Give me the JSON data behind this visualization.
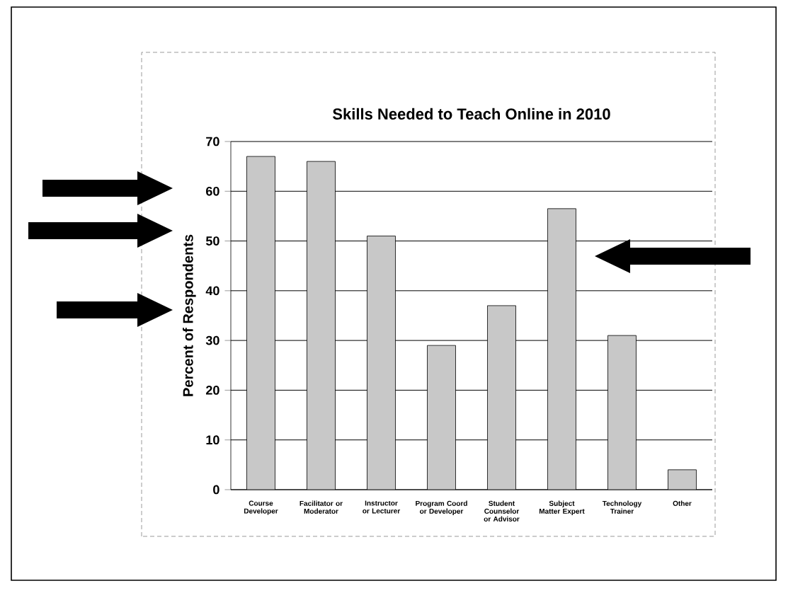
{
  "chart_data": {
    "type": "bar",
    "title": "Skills Needed to Teach Online in 2010",
    "ylabel": "Percent of Respondents",
    "categories": [
      "Course Developer",
      "Facilitator or Moderator",
      "Instructor or Lecturer",
      "Program Coord or Developer",
      "Student Counselor or Advisor",
      "Subject Matter Expert",
      "Technology Trainer",
      "Other"
    ],
    "values": [
      67,
      66,
      51,
      29,
      37,
      56.5,
      31,
      4
    ],
    "color": "#c8c8c8",
    "ylim": [
      0,
      70
    ],
    "yticks": [
      0,
      10,
      20,
      30,
      40,
      50,
      60,
      70
    ],
    "grid": "y"
  }
}
